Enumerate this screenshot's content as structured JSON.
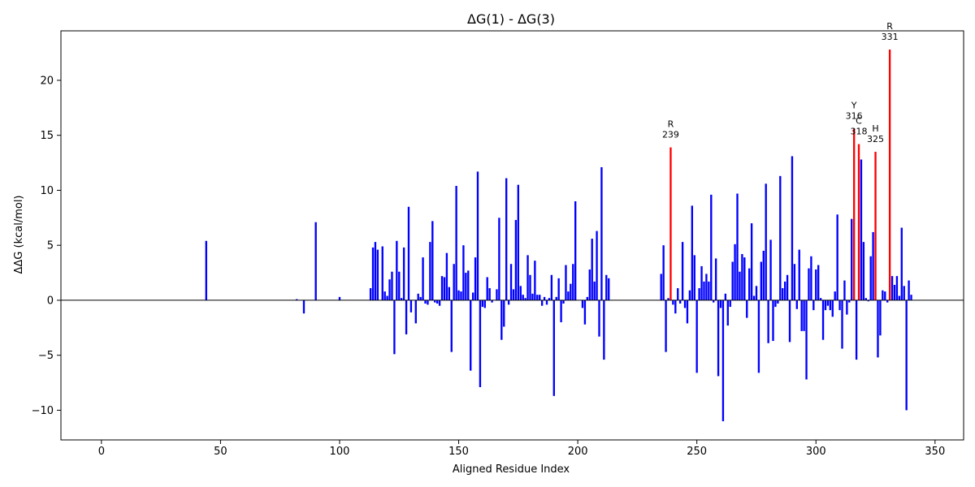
{
  "chart_data": {
    "type": "bar",
    "title": "ΔG(1) - ΔG(3)",
    "xlabel": "Aligned Residue Index",
    "ylabel": "ΔΔG (kcal/mol)",
    "xlim": [
      -17,
      362
    ],
    "ylim": [
      -12.7,
      24.5
    ],
    "xticks": [
      0,
      50,
      100,
      150,
      200,
      250,
      300,
      350
    ],
    "yticks": [
      -10,
      -5,
      0,
      5,
      10,
      15,
      20
    ],
    "ytick_labels": [
      "−10",
      "−5",
      "0",
      "5",
      "10",
      "15",
      "20"
    ],
    "grid": false,
    "colors": {
      "default": "#0000ff",
      "highlight": "#ff0000",
      "zero_line": "#000000"
    },
    "bars": [
      [
        44,
        5.4
      ],
      [
        82,
        0.1
      ],
      [
        85,
        -1.2
      ],
      [
        90,
        7.1
      ],
      [
        100,
        0.3
      ],
      [
        113,
        1.1
      ],
      [
        114,
        4.8
      ],
      [
        115,
        5.3
      ],
      [
        116,
        4.6
      ],
      [
        118,
        4.9
      ],
      [
        119,
        0.8
      ],
      [
        120,
        0.4
      ],
      [
        121,
        1.9
      ],
      [
        122,
        2.6
      ],
      [
        123,
        -4.9
      ],
      [
        124,
        5.4
      ],
      [
        125,
        2.6
      ],
      [
        126,
        0.2
      ],
      [
        127,
        4.8
      ],
      [
        128,
        -3.1
      ],
      [
        129,
        8.5
      ],
      [
        130,
        -1.1
      ],
      [
        132,
        -2.1
      ],
      [
        133,
        0.6
      ],
      [
        134,
        0.3
      ],
      [
        135,
        3.9
      ],
      [
        136,
        -0.3
      ],
      [
        137,
        -0.4
      ],
      [
        138,
        5.3
      ],
      [
        139,
        7.2
      ],
      [
        140,
        -0.2
      ],
      [
        141,
        -0.3
      ],
      [
        142,
        -0.5
      ],
      [
        143,
        2.2
      ],
      [
        144,
        2.1
      ],
      [
        145,
        4.3
      ],
      [
        146,
        1.2
      ],
      [
        147,
        -4.7
      ],
      [
        148,
        3.3
      ],
      [
        149,
        10.4
      ],
      [
        150,
        0.9
      ],
      [
        151,
        0.8
      ],
      [
        152,
        5.0
      ],
      [
        153,
        2.5
      ],
      [
        154,
        2.7
      ],
      [
        155,
        -6.4
      ],
      [
        156,
        0.7
      ],
      [
        157,
        3.9
      ],
      [
        158,
        11.7
      ],
      [
        159,
        -7.9
      ],
      [
        160,
        -0.6
      ],
      [
        161,
        -0.7
      ],
      [
        162,
        2.1
      ],
      [
        163,
        1.1
      ],
      [
        164,
        -0.2
      ],
      [
        166,
        1.0
      ],
      [
        167,
        7.5
      ],
      [
        168,
        -3.6
      ],
      [
        169,
        -2.4
      ],
      [
        170,
        11.1
      ],
      [
        171,
        -0.4
      ],
      [
        172,
        3.3
      ],
      [
        173,
        1.0
      ],
      [
        174,
        7.3
      ],
      [
        175,
        10.5
      ],
      [
        176,
        1.3
      ],
      [
        177,
        0.5
      ],
      [
        178,
        0.2
      ],
      [
        179,
        4.1
      ],
      [
        180,
        2.3
      ],
      [
        181,
        0.6
      ],
      [
        182,
        3.6
      ],
      [
        183,
        0.5
      ],
      [
        184,
        0.5
      ],
      [
        185,
        -0.5
      ],
      [
        186,
        0.3
      ],
      [
        187,
        -0.4
      ],
      [
        188,
        0.2
      ],
      [
        189,
        2.3
      ],
      [
        190,
        -8.7
      ],
      [
        191,
        0.3
      ],
      [
        192,
        2.0
      ],
      [
        193,
        -2.0
      ],
      [
        194,
        -0.3
      ],
      [
        195,
        3.2
      ],
      [
        196,
        0.8
      ],
      [
        197,
        1.5
      ],
      [
        198,
        3.3
      ],
      [
        199,
        9.0
      ],
      [
        202,
        -0.7
      ],
      [
        203,
        -2.2
      ],
      [
        204,
        0.3
      ],
      [
        205,
        2.8
      ],
      [
        206,
        5.6
      ],
      [
        207,
        1.7
      ],
      [
        208,
        6.3
      ],
      [
        209,
        -3.3
      ],
      [
        210,
        12.1
      ],
      [
        211,
        -5.4
      ],
      [
        212,
        2.3
      ],
      [
        213,
        2.0
      ],
      [
        235,
        2.4
      ],
      [
        236,
        5.0
      ],
      [
        237,
        -4.7
      ],
      [
        238,
        0.2
      ],
      [
        239,
        13.9
      ],
      [
        240,
        -0.4
      ],
      [
        241,
        -1.2
      ],
      [
        242,
        1.1
      ],
      [
        243,
        -0.3
      ],
      [
        244,
        5.3
      ],
      [
        245,
        -0.7
      ],
      [
        246,
        -2.1
      ],
      [
        247,
        0.9
      ],
      [
        248,
        8.6
      ],
      [
        249,
        4.1
      ],
      [
        250,
        -6.6
      ],
      [
        251,
        1.1
      ],
      [
        252,
        3.1
      ],
      [
        253,
        1.7
      ],
      [
        254,
        2.4
      ],
      [
        255,
        1.7
      ],
      [
        256,
        9.6
      ],
      [
        257,
        -0.2
      ],
      [
        258,
        3.8
      ],
      [
        259,
        -6.9
      ],
      [
        260,
        -0.7
      ],
      [
        261,
        -11.0
      ],
      [
        262,
        0.6
      ],
      [
        263,
        -2.3
      ],
      [
        264,
        -0.6
      ],
      [
        265,
        3.5
      ],
      [
        266,
        5.1
      ],
      [
        267,
        9.7
      ],
      [
        268,
        2.6
      ],
      [
        269,
        4.2
      ],
      [
        270,
        3.9
      ],
      [
        271,
        -1.6
      ],
      [
        272,
        2.9
      ],
      [
        273,
        7.0
      ],
      [
        274,
        0.4
      ],
      [
        275,
        1.3
      ],
      [
        276,
        -6.6
      ],
      [
        277,
        3.5
      ],
      [
        278,
        4.5
      ],
      [
        279,
        10.6
      ],
      [
        280,
        -3.9
      ],
      [
        281,
        5.5
      ],
      [
        282,
        -3.7
      ],
      [
        283,
        -0.6
      ],
      [
        284,
        -0.3
      ],
      [
        285,
        11.3
      ],
      [
        286,
        1.1
      ],
      [
        287,
        1.7
      ],
      [
        288,
        2.3
      ],
      [
        289,
        -3.8
      ],
      [
        290,
        13.1
      ],
      [
        291,
        3.3
      ],
      [
        292,
        -0.8
      ],
      [
        293,
        4.6
      ],
      [
        294,
        -2.8
      ],
      [
        295,
        -2.8
      ],
      [
        296,
        -7.2
      ],
      [
        297,
        2.9
      ],
      [
        298,
        4.0
      ],
      [
        299,
        -0.9
      ],
      [
        300,
        2.8
      ],
      [
        301,
        3.2
      ],
      [
        302,
        0.2
      ],
      [
        303,
        -3.6
      ],
      [
        304,
        -0.9
      ],
      [
        305,
        -0.5
      ],
      [
        306,
        -0.9
      ],
      [
        307,
        -1.5
      ],
      [
        308,
        0.8
      ],
      [
        309,
        7.8
      ],
      [
        310,
        -0.9
      ],
      [
        311,
        -4.4
      ],
      [
        312,
        1.8
      ],
      [
        313,
        -1.3
      ],
      [
        314,
        -0.2
      ],
      [
        315,
        7.4
      ],
      [
        316,
        15.6
      ],
      [
        317,
        -5.4
      ],
      [
        318,
        14.2
      ],
      [
        319,
        12.8
      ],
      [
        320,
        5.3
      ],
      [
        321,
        0.2
      ],
      [
        322,
        -0.1
      ],
      [
        323,
        4.0
      ],
      [
        324,
        6.2
      ],
      [
        325,
        13.5
      ],
      [
        326,
        -5.2
      ],
      [
        327,
        -3.2
      ],
      [
        328,
        0.9
      ],
      [
        329,
        0.8
      ],
      [
        330,
        -0.2
      ],
      [
        331,
        22.8
      ],
      [
        332,
        2.2
      ],
      [
        333,
        1.4
      ],
      [
        334,
        2.2
      ],
      [
        335,
        0.4
      ],
      [
        336,
        6.6
      ],
      [
        337,
        1.3
      ],
      [
        338,
        -10.0
      ],
      [
        339,
        1.8
      ],
      [
        340,
        0.5
      ]
    ],
    "highlighted": [
      239,
      316,
      318,
      325,
      331
    ],
    "annotations": [
      {
        "x": 239,
        "y": 13.9,
        "residue": "R",
        "index": "239"
      },
      {
        "x": 316,
        "y": 15.6,
        "residue": "Y",
        "index": "316"
      },
      {
        "x": 318,
        "y": 14.2,
        "residue": "C",
        "index": "318"
      },
      {
        "x": 325,
        "y": 13.5,
        "residue": "H",
        "index": "325"
      },
      {
        "x": 331,
        "y": 22.8,
        "residue": "R",
        "index": "331"
      }
    ]
  }
}
